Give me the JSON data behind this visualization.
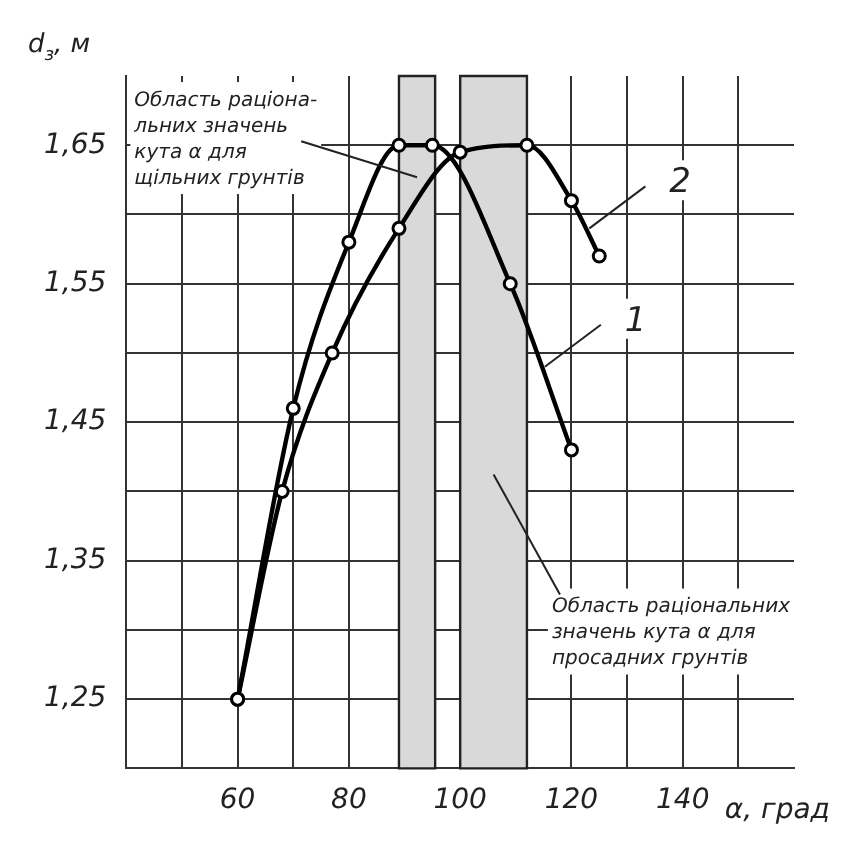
{
  "chart_data": {
    "type": "line",
    "xlabel": "α, град",
    "ylabel": "d$_{з}$, м",
    "xlim": [
      40,
      160
    ],
    "ylim": [
      1.2,
      1.7
    ],
    "xticks": [
      {
        "value": 50,
        "label": null
      },
      {
        "value": 60,
        "label": "60"
      },
      {
        "value": 70,
        "label": null
      },
      {
        "value": 80,
        "label": "80"
      },
      {
        "value": 100,
        "label": "100"
      },
      {
        "value": 120,
        "label": "120"
      },
      {
        "value": 130,
        "label": null
      },
      {
        "value": 140,
        "label": "140"
      },
      {
        "value": 150,
        "label": null
      }
    ],
    "yticks": [
      {
        "value": 1.25,
        "label": "1,25"
      },
      {
        "value": 1.3,
        "label": null
      },
      {
        "value": 1.35,
        "label": "1,35"
      },
      {
        "value": 1.4,
        "label": null
      },
      {
        "value": 1.45,
        "label": "1,45"
      },
      {
        "value": 1.5,
        "label": null
      },
      {
        "value": 1.55,
        "label": "1,55"
      },
      {
        "value": 1.6,
        "label": null
      },
      {
        "value": 1.65,
        "label": "1,65"
      }
    ],
    "grid": true,
    "marker": "circle",
    "line_style": "solid",
    "series": [
      {
        "name": "1",
        "color": "#000000",
        "x": [
          60,
          70,
          80,
          89,
          95,
          109,
          120
        ],
        "values": [
          1.25,
          1.46,
          1.58,
          1.65,
          1.65,
          1.55,
          1.43
        ]
      },
      {
        "name": "2",
        "color": "#000000",
        "x": [
          60,
          68,
          77,
          89,
          100,
          112,
          120,
          125
        ],
        "values": [
          1.25,
          1.4,
          1.5,
          1.59,
          1.645,
          1.65,
          1.61,
          1.57
        ]
      }
    ],
    "bands": [
      {
        "axis": "x",
        "from": 89,
        "to": 95.5,
        "color": "#d9d9d9"
      },
      {
        "axis": "x",
        "from": 100,
        "to": 112,
        "color": "#d9d9d9"
      }
    ],
    "annotations": [
      "Область раціона-\nльних значень\nкута α для\nщільних грунтів",
      "Область раціональних\nзначень кута α для\nпросадних грунтів"
    ]
  }
}
